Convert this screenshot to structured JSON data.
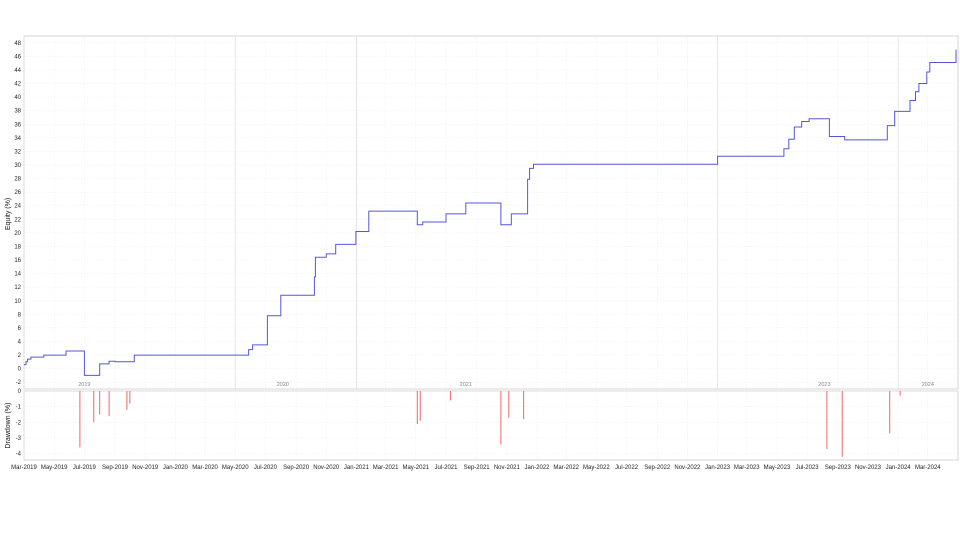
{
  "chart_data": {
    "type": "line",
    "x_start": "2019-03",
    "x_end": "2024-04",
    "month_labels": [
      "Mar-2019",
      "May-2019",
      "Jul-2019",
      "Sep-2019",
      "Nov-2019",
      "Jan-2020",
      "Mar-2020",
      "May-2020",
      "Jul-2020",
      "Sep-2020",
      "Nov-2020",
      "Jan-2021",
      "Mar-2021",
      "May-2021",
      "Jul-2021",
      "Sep-2021",
      "Nov-2021",
      "Jan-2022",
      "Mar-2022",
      "May-2022",
      "Jul-2022",
      "Sep-2022",
      "Nov-2022",
      "Jan-2023",
      "Mar-2023",
      "May-2023",
      "Jul-2023",
      "Sep-2023",
      "Nov-2023",
      "Jan-2024",
      "Mar-2024"
    ],
    "year_labels": [
      "2019",
      "2020",
      "2021",
      "2023",
      "2024"
    ],
    "panels": [
      {
        "name": "equity",
        "ylabel": "Equity (%)",
        "ylim": [
          -3,
          49
        ],
        "yticks": [
          -2,
          0,
          2,
          4,
          6,
          8,
          10,
          12,
          14,
          16,
          18,
          20,
          22,
          24,
          26,
          28,
          30,
          32,
          34,
          36,
          38,
          40,
          42,
          44,
          46,
          48
        ],
        "color": "#5555dd",
        "series": {
          "x": [
            "2019-03-01",
            "2019-03-05",
            "2019-03-08",
            "2019-03-15",
            "2019-03-25",
            "2019-04-10",
            "2019-05-01",
            "2019-05-15",
            "2019-05-25",
            "2019-06-01",
            "2019-06-22",
            "2019-07-01",
            "2019-07-05",
            "2019-07-10",
            "2019-07-20",
            "2019-08-01",
            "2019-08-20",
            "2019-09-01",
            "2019-09-10",
            "2019-09-25",
            "2019-10-01",
            "2019-10-10",
            "2020-01-01",
            "2020-03-01",
            "2020-05-01",
            "2020-05-15",
            "2020-05-24",
            "2020-05-28",
            "2020-06-05",
            "2020-06-25",
            "2020-07-05",
            "2020-07-15",
            "2020-08-01",
            "2020-08-15",
            "2020-09-01",
            "2020-10-01",
            "2020-10-08",
            "2020-10-10",
            "2020-10-25",
            "2020-11-01",
            "2020-11-10",
            "2020-11-20",
            "2020-12-01",
            "2020-12-20",
            "2020-12-31",
            "2021-01-15",
            "2021-01-26",
            "2021-02-15",
            "2021-03-15",
            "2021-04-30",
            "2021-05-04",
            "2021-05-15",
            "2021-06-01",
            "2021-06-25",
            "2021-07-01",
            "2021-07-20",
            "2021-08-10",
            "2021-09-01",
            "2021-10-01",
            "2021-10-20",
            "2021-10-25",
            "2021-11-10",
            "2021-12-01",
            "2021-12-13",
            "2021-12-17",
            "2021-12-25",
            "2022-03-01",
            "2022-06-01",
            "2022-09-01",
            "2022-12-31",
            "2023-01-01",
            "2023-02-15",
            "2023-03-15",
            "2023-04-15",
            "2023-04-30",
            "2023-05-05",
            "2023-05-15",
            "2023-05-25",
            "2023-06-05",
            "2023-06-20",
            "2023-07-05",
            "2023-08-01",
            "2023-08-15",
            "2023-09-01",
            "2023-09-15",
            "2023-10-15",
            "2023-11-15",
            "2023-11-20",
            "2023-11-28",
            "2023-12-10",
            "2023-12-25",
            "2024-01-10",
            "2024-01-25",
            "2024-02-05",
            "2024-02-12",
            "2024-02-20",
            "2024-02-28",
            "2024-03-05",
            "2024-03-15",
            "2024-04-05",
            "2024-04-20",
            "2024-04-26",
            "2024-04-27"
          ],
          "y": [
            0.6,
            1.0,
            1.4,
            1.7,
            1.7,
            2.0,
            2.0,
            2.0,
            2.6,
            2.6,
            2.6,
            -1.0,
            -1.0,
            -1.0,
            -1.0,
            0.7,
            1.1,
            1.0,
            1.0,
            1.0,
            1.0,
            2.0,
            2.0,
            2.0,
            2.0,
            2.0,
            2.0,
            2.8,
            3.5,
            3.5,
            7.8,
            7.8,
            10.8,
            10.8,
            10.8,
            10.8,
            13.5,
            16.4,
            16.4,
            16.9,
            16.9,
            18.3,
            18.3,
            18.3,
            20.2,
            20.2,
            23.2,
            23.2,
            23.2,
            23.2,
            21.2,
            21.6,
            21.6,
            21.6,
            22.8,
            22.8,
            24.4,
            24.4,
            24.4,
            21.2,
            21.2,
            22.8,
            22.8,
            27.9,
            29.5,
            30.1,
            30.1,
            30.1,
            30.1,
            30.1,
            31.3,
            31.3,
            31.3,
            31.3,
            31.3,
            31.3,
            32.4,
            33.8,
            35.6,
            36.4,
            36.8,
            36.8,
            34.2,
            34.2,
            33.7,
            33.7,
            33.7,
            33.7,
            33.7,
            35.8,
            37.9,
            37.9,
            39.5,
            40.8,
            42.0,
            42.0,
            43.7,
            45.1,
            45.1,
            45.1,
            45.1,
            45.1,
            47.0
          ]
        }
      },
      {
        "name": "drawdown",
        "ylabel": "Drawdown (%)",
        "ylim": [
          -4.4,
          0
        ],
        "yticks": [
          0,
          -1,
          -2,
          -3,
          -4
        ],
        "color": "#ee6666",
        "series": {
          "x": [
            "2019-06-22",
            "2019-07-20",
            "2019-08-01",
            "2019-08-20",
            "2019-09-25",
            "2019-10-01",
            "2021-05-04",
            "2021-05-10",
            "2021-07-10",
            "2021-10-20",
            "2021-11-05",
            "2021-12-05",
            "2023-08-10",
            "2023-09-10",
            "2023-12-15",
            "2024-01-05"
          ],
          "values": [
            -3.6,
            -2.0,
            -1.5,
            -1.6,
            -1.2,
            -0.8,
            -2.1,
            -1.9,
            -0.6,
            -3.4,
            -1.7,
            -1.8,
            -3.7,
            -4.2,
            -2.7,
            -0.3
          ]
        }
      }
    ],
    "grid": true
  }
}
